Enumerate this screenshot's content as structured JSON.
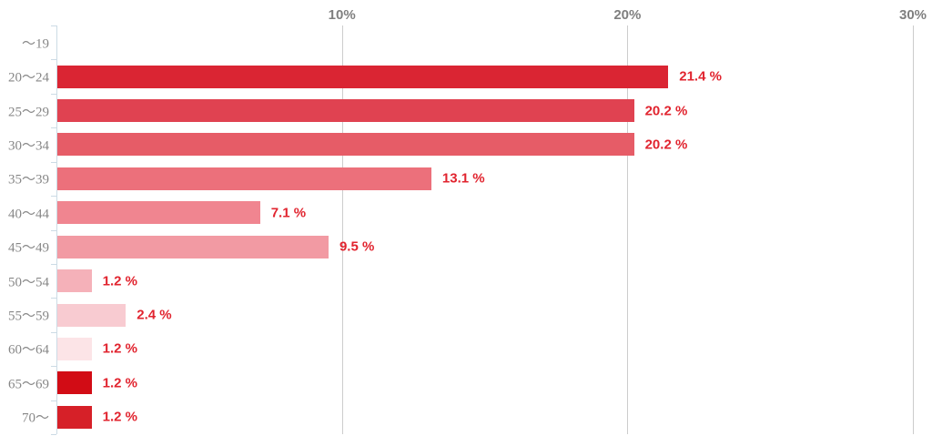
{
  "chart_data": {
    "type": "bar",
    "orientation": "horizontal",
    "title": "",
    "categories": [
      "〜19",
      "20〜24",
      "25〜29",
      "30〜34",
      "35〜39",
      "40〜44",
      "45〜49",
      "50〜54",
      "55〜59",
      "60〜64",
      "65〜69",
      "70〜"
    ],
    "values": [
      null,
      21.4,
      20.2,
      20.2,
      13.1,
      7.1,
      9.5,
      1.2,
      2.4,
      1.2,
      1.2,
      1.2
    ],
    "value_labels": [
      "",
      "21.4 %",
      "20.2 %",
      "20.2 %",
      "13.1 %",
      "7.1 %",
      "9.5 %",
      "1.2 %",
      "2.4 %",
      "1.2 %",
      "1.2 %",
      "1.2 %"
    ],
    "bar_colors": [
      "",
      "#da2533",
      "#e04251",
      "#e65c67",
      "#ec707b",
      "#f08590",
      "#f29aa3",
      "#f5b1b9",
      "#f8cbd1",
      "#fce4e7",
      "#d20c15",
      "#d62028"
    ],
    "x_tick_labels": [
      "10%",
      "20%",
      "30%"
    ],
    "x_tick_values": [
      10,
      20,
      30
    ],
    "xlim": [
      0,
      30
    ],
    "grid": true,
    "legend": "none",
    "xlabel": "",
    "ylabel": "",
    "colors": {
      "value_label": "#e1242f",
      "gridline": "#cccccc",
      "axis_line": "#ccdbe5",
      "x_tick_label": "#7f7f7f",
      "category_label": "#878787",
      "background": "#ffffff"
    }
  }
}
